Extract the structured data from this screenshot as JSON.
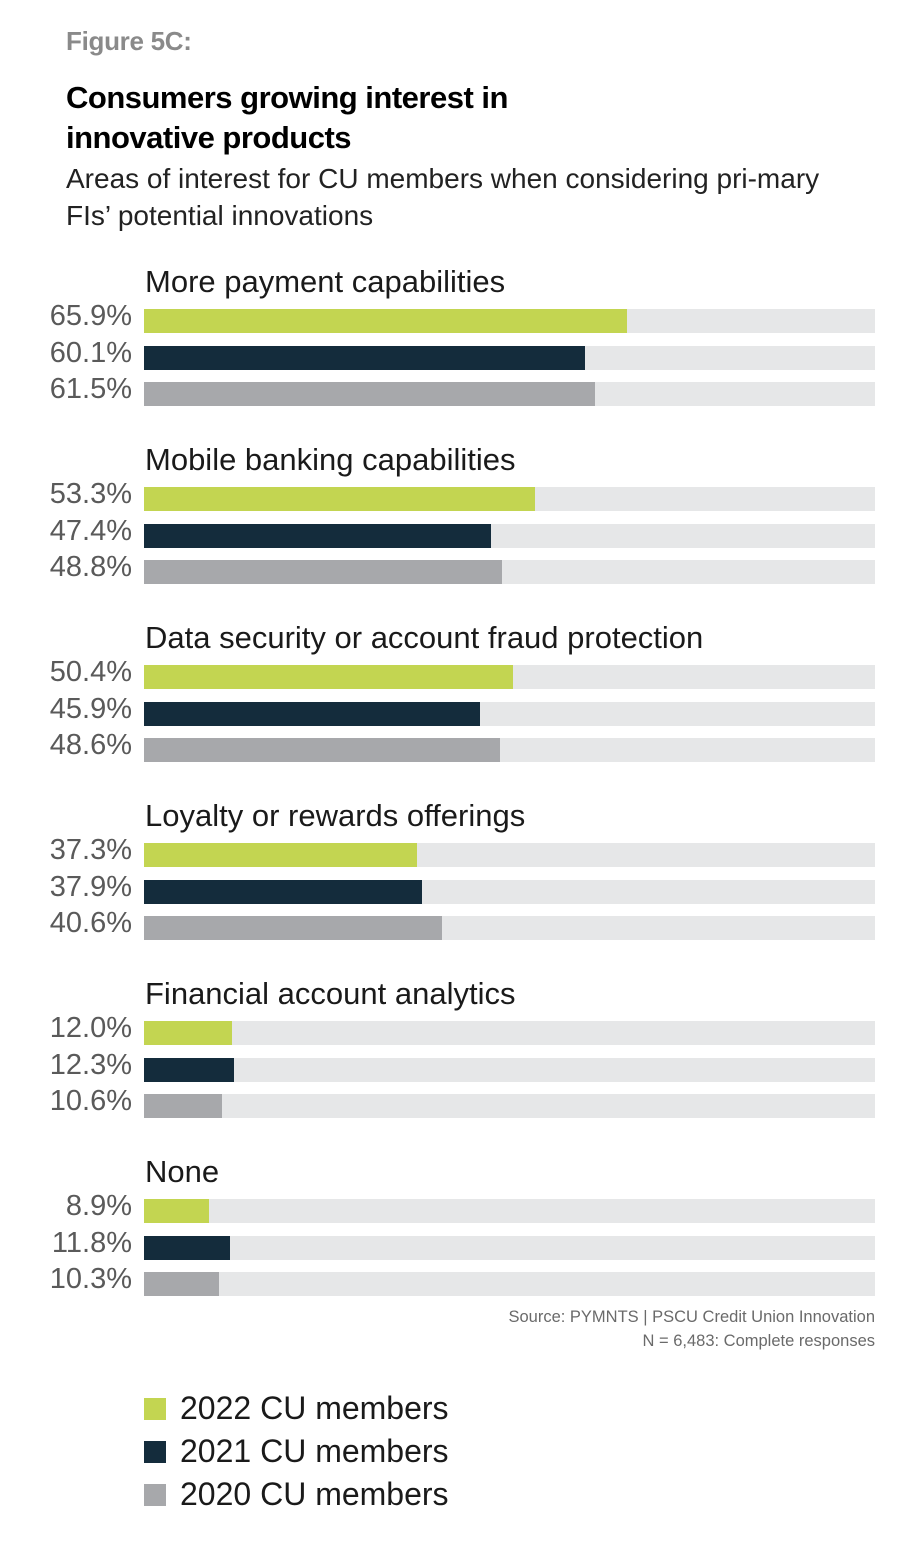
{
  "figure_label": "Figure 5C:",
  "source_lines": [
    "Source: PYMNTS | PSCU Credit Union Innovation",
    "N = 6,483: Complete responses"
  ],
  "colors": {
    "2022": "#c3d551",
    "2021": "#142c3c",
    "2020": "#a7a8ab",
    "track": "#e6e7e8"
  },
  "chart_data": {
    "type": "bar",
    "orientation": "horizontal",
    "title": "Consumers growing interest in innovative products",
    "subtitle": "Areas of interest for CU members when considering pri-mary FIs’ potential innovations",
    "categories": [
      "More payment capabilities",
      "Mobile banking capabilities",
      "Data security or account fraud protection",
      "Loyalty or rewards offerings",
      "Financial account analytics",
      "None"
    ],
    "series": [
      {
        "name": "2022 CU members",
        "values": [
          65.9,
          53.3,
          50.4,
          37.3,
          12.0,
          8.9
        ],
        "labels": [
          "65.9%",
          "53.3%",
          "50.4%",
          "37.3%",
          "12.0%",
          "8.9%"
        ]
      },
      {
        "name": "2021 CU members",
        "values": [
          60.1,
          47.4,
          45.9,
          37.9,
          12.3,
          11.8
        ],
        "labels": [
          "60.1%",
          "47.4%",
          "45.9%",
          "37.9%",
          "12.3%",
          "11.8%"
        ]
      },
      {
        "name": "2020 CU members",
        "values": [
          61.5,
          48.8,
          48.6,
          40.6,
          10.6,
          10.3
        ],
        "labels": [
          "61.5%",
          "48.8%",
          "48.6%",
          "40.6%",
          "10.6%",
          "10.3%"
        ]
      }
    ],
    "xlim": [
      0,
      100
    ],
    "legend_position": "bottom-left",
    "grid": false
  }
}
